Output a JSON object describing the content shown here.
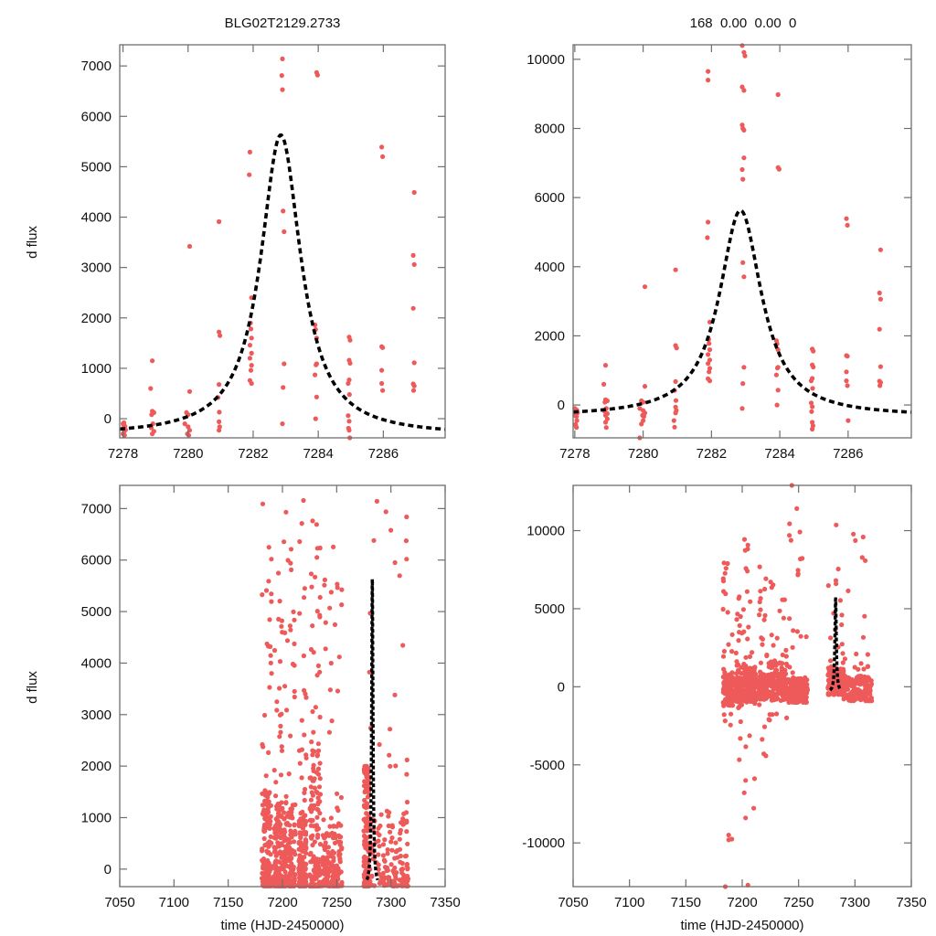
{
  "figure": {
    "point_color": "#ee5a5a",
    "model_color": "#000000",
    "model_style": "dashed"
  },
  "chart_data": [
    {
      "id": "top-left",
      "type": "scatter",
      "title": "BLG02T2129.2733",
      "xlabel": "",
      "ylabel": "d flux",
      "xlim": [
        7277.9,
        7287.9
      ],
      "ylim": [
        -380,
        7420
      ],
      "xticks": [
        7278,
        7280,
        7282,
        7284,
        7286
      ],
      "xtick_labels": [
        "7278",
        "7280",
        "7282",
        "7284",
        "7286"
      ],
      "yticks": [
        0,
        1000,
        2000,
        3000,
        4000,
        5000,
        6000,
        7000
      ],
      "ytick_labels": [
        "0",
        "1000",
        "2000",
        "3000",
        "4000",
        "5000",
        "6000",
        "7000"
      ],
      "grid": false,
      "model": {
        "t0": 7282.85,
        "peak": 5630,
        "baseline": -340,
        "width": 0.75
      },
      "points": [
        [
          7278.0,
          -100
        ],
        [
          7278.02,
          -180
        ],
        [
          7278.04,
          -250
        ],
        [
          7278.06,
          -150
        ],
        [
          7278.0,
          -300
        ],
        [
          7278.05,
          -330
        ],
        [
          7278.08,
          -220
        ],
        [
          7278.03,
          -80
        ],
        [
          7278.9,
          1150
        ],
        [
          7278.85,
          600
        ],
        [
          7278.9,
          150
        ],
        [
          7278.95,
          120
        ],
        [
          7278.88,
          80
        ],
        [
          7278.92,
          -100
        ],
        [
          7278.87,
          -180
        ],
        [
          7278.95,
          -250
        ],
        [
          7278.9,
          -300
        ],
        [
          7280.05,
          3420
        ],
        [
          7280.05,
          540
        ],
        [
          7279.95,
          120
        ],
        [
          7280.0,
          80
        ],
        [
          7279.9,
          -100
        ],
        [
          7280.0,
          -160
        ],
        [
          7280.05,
          -230
        ],
        [
          7279.98,
          -300
        ],
        [
          7280.02,
          -330
        ],
        [
          7280.95,
          3910
        ],
        [
          7280.95,
          1720
        ],
        [
          7280.98,
          1650
        ],
        [
          7280.95,
          680
        ],
        [
          7280.92,
          420
        ],
        [
          7280.96,
          130
        ],
        [
          7280.95,
          -60
        ],
        [
          7280.97,
          -160
        ],
        [
          7280.95,
          -230
        ],
        [
          7281.9,
          5290
        ],
        [
          7281.88,
          4840
        ],
        [
          7281.95,
          2400
        ],
        [
          7281.92,
          1900
        ],
        [
          7281.93,
          1780
        ],
        [
          7281.95,
          1600
        ],
        [
          7281.9,
          1460
        ],
        [
          7281.95,
          1300
        ],
        [
          7281.9,
          1200
        ],
        [
          7281.95,
          1060
        ],
        [
          7281.93,
          960
        ],
        [
          7281.9,
          760
        ],
        [
          7281.95,
          700
        ],
        [
          7282.9,
          7140
        ],
        [
          7282.88,
          6810
        ],
        [
          7282.9,
          6530
        ],
        [
          7282.92,
          4120
        ],
        [
          7282.95,
          3710
        ],
        [
          7282.95,
          1090
        ],
        [
          7282.92,
          620
        ],
        [
          7282.9,
          -100
        ],
        [
          7283.95,
          6870
        ],
        [
          7283.98,
          6820
        ],
        [
          7283.9,
          1860
        ],
        [
          7283.92,
          1770
        ],
        [
          7283.95,
          1600
        ],
        [
          7283.95,
          1090
        ],
        [
          7283.93,
          1070
        ],
        [
          7283.9,
          870
        ],
        [
          7283.95,
          430
        ],
        [
          7283.92,
          0
        ],
        [
          7284.95,
          1620
        ],
        [
          7284.98,
          1560
        ],
        [
          7284.95,
          1160
        ],
        [
          7284.98,
          1100
        ],
        [
          7284.95,
          770
        ],
        [
          7284.92,
          700
        ],
        [
          7284.96,
          480
        ],
        [
          7284.92,
          60
        ],
        [
          7284.95,
          -50
        ],
        [
          7284.93,
          -190
        ],
        [
          7284.95,
          -230
        ],
        [
          7284.97,
          -380
        ],
        [
          7285.95,
          5390
        ],
        [
          7285.98,
          5200
        ],
        [
          7285.95,
          1430
        ],
        [
          7285.98,
          1410
        ],
        [
          7285.95,
          960
        ],
        [
          7285.95,
          700
        ],
        [
          7285.98,
          560
        ],
        [
          7286.95,
          4490
        ],
        [
          7286.92,
          3240
        ],
        [
          7286.95,
          3060
        ],
        [
          7286.92,
          2190
        ],
        [
          7286.95,
          1110
        ],
        [
          7286.92,
          690
        ],
        [
          7286.95,
          650
        ],
        [
          7286.93,
          560
        ]
      ]
    },
    {
      "id": "top-right",
      "type": "scatter",
      "title": "168  0.00  0.00  0",
      "xlabel": "",
      "ylabel": "",
      "xlim": [
        7277.95,
        7287.85
      ],
      "ylim": [
        -950,
        10420
      ],
      "xticks": [
        7278,
        7280,
        7282,
        7284,
        7286
      ],
      "xtick_labels": [
        "7278",
        "7280",
        "7282",
        "7284",
        "7286"
      ],
      "yticks": [
        0,
        2000,
        4000,
        6000,
        8000,
        10000
      ],
      "ytick_labels": [
        "0",
        "2000",
        "4000",
        "6000",
        "8000",
        "10000"
      ],
      "grid": false,
      "model": {
        "t0": 7282.85,
        "peak": 5630,
        "baseline": -340,
        "width": 0.75
      },
      "points": [
        [
          7278.0,
          -100
        ],
        [
          7278.02,
          -180
        ],
        [
          7278.04,
          -250
        ],
        [
          7278.06,
          -150
        ],
        [
          7278.0,
          -300
        ],
        [
          7278.05,
          -330
        ],
        [
          7278.08,
          -220
        ],
        [
          7278.03,
          -600
        ],
        [
          7278.05,
          -650
        ],
        [
          7278.02,
          -560
        ],
        [
          7278.06,
          -450
        ],
        [
          7278.9,
          1150
        ],
        [
          7278.85,
          600
        ],
        [
          7278.9,
          150
        ],
        [
          7278.95,
          120
        ],
        [
          7278.88,
          80
        ],
        [
          7278.92,
          -100
        ],
        [
          7278.87,
          -180
        ],
        [
          7278.95,
          -250
        ],
        [
          7278.9,
          -300
        ],
        [
          7278.95,
          -400
        ],
        [
          7278.9,
          -500
        ],
        [
          7278.92,
          -650
        ],
        [
          7280.05,
          3420
        ],
        [
          7280.05,
          540
        ],
        [
          7279.95,
          120
        ],
        [
          7280.0,
          80
        ],
        [
          7279.9,
          -100
        ],
        [
          7280.0,
          -160
        ],
        [
          7280.05,
          -230
        ],
        [
          7279.98,
          -300
        ],
        [
          7280.02,
          -330
        ],
        [
          7280.0,
          -450
        ],
        [
          7279.95,
          -550
        ],
        [
          7279.9,
          -950
        ],
        [
          7280.95,
          3910
        ],
        [
          7280.95,
          1720
        ],
        [
          7280.98,
          1650
        ],
        [
          7280.95,
          680
        ],
        [
          7280.92,
          420
        ],
        [
          7280.96,
          130
        ],
        [
          7280.95,
          -60
        ],
        [
          7280.97,
          -160
        ],
        [
          7280.95,
          -230
        ],
        [
          7280.9,
          -450
        ],
        [
          7280.92,
          -640
        ],
        [
          7281.9,
          5290
        ],
        [
          7281.88,
          4840
        ],
        [
          7281.95,
          2400
        ],
        [
          7281.92,
          1900
        ],
        [
          7281.93,
          1780
        ],
        [
          7281.95,
          1600
        ],
        [
          7281.9,
          1460
        ],
        [
          7281.95,
          1300
        ],
        [
          7281.9,
          1200
        ],
        [
          7281.95,
          1060
        ],
        [
          7281.93,
          960
        ],
        [
          7281.9,
          760
        ],
        [
          7281.95,
          700
        ],
        [
          7281.9,
          9400
        ],
        [
          7281.9,
          9650
        ],
        [
          7282.9,
          10400
        ],
        [
          7282.95,
          10200
        ],
        [
          7282.98,
          10100
        ],
        [
          7282.9,
          9200
        ],
        [
          7282.95,
          9100
        ],
        [
          7282.9,
          8100
        ],
        [
          7282.92,
          8000
        ],
        [
          7282.95,
          7950
        ],
        [
          7282.95,
          7150
        ],
        [
          7282.9,
          6810
        ],
        [
          7282.92,
          6530
        ],
        [
          7282.92,
          4120
        ],
        [
          7282.95,
          3710
        ],
        [
          7282.95,
          1090
        ],
        [
          7282.92,
          620
        ],
        [
          7282.9,
          -100
        ],
        [
          7283.95,
          8980
        ],
        [
          7283.95,
          6870
        ],
        [
          7283.98,
          6820
        ],
        [
          7283.9,
          1860
        ],
        [
          7283.92,
          1770
        ],
        [
          7283.95,
          1600
        ],
        [
          7283.95,
          1090
        ],
        [
          7283.93,
          1070
        ],
        [
          7283.9,
          870
        ],
        [
          7283.95,
          430
        ],
        [
          7283.92,
          0
        ],
        [
          7284.95,
          1620
        ],
        [
          7284.98,
          1560
        ],
        [
          7284.95,
          1160
        ],
        [
          7284.98,
          1100
        ],
        [
          7284.95,
          770
        ],
        [
          7284.92,
          700
        ],
        [
          7284.96,
          480
        ],
        [
          7284.92,
          60
        ],
        [
          7284.95,
          -50
        ],
        [
          7284.93,
          -190
        ],
        [
          7284.95,
          -500
        ],
        [
          7284.97,
          -600
        ],
        [
          7284.95,
          -700
        ],
        [
          7285.95,
          5390
        ],
        [
          7285.98,
          5200
        ],
        [
          7285.95,
          1430
        ],
        [
          7285.98,
          1410
        ],
        [
          7285.95,
          960
        ],
        [
          7285.95,
          700
        ],
        [
          7285.98,
          560
        ],
        [
          7286.0,
          -450
        ],
        [
          7286.95,
          4490
        ],
        [
          7286.92,
          3240
        ],
        [
          7286.95,
          3060
        ],
        [
          7286.92,
          2190
        ],
        [
          7286.95,
          1110
        ],
        [
          7286.92,
          690
        ],
        [
          7286.95,
          650
        ],
        [
          7286.93,
          560
        ]
      ]
    },
    {
      "id": "bottom-left",
      "type": "scatter",
      "title": "",
      "xlabel": "time (HJD-2450000)",
      "ylabel": "d flux",
      "xlim": [
        7050,
        7350
      ],
      "ylim": [
        -340,
        7450
      ],
      "xticks": [
        7050,
        7100,
        7150,
        7200,
        7250,
        7300,
        7350
      ],
      "xtick_labels": [
        "7050",
        "7100",
        "7150",
        "7200",
        "7250",
        "7300",
        "7350"
      ],
      "yticks": [
        0,
        1000,
        2000,
        3000,
        4000,
        5000,
        6000,
        7000
      ],
      "ytick_labels": [
        "0",
        "1000",
        "2000",
        "3000",
        "4000",
        "5000",
        "6000",
        "7000"
      ],
      "grid": false,
      "model": {
        "t0": 7282.85,
        "peak": 5630,
        "baseline": -340,
        "width": 0.75
      },
      "seasons": [
        {
          "x_range": [
            7181,
            7190
          ],
          "dense_max": 1500,
          "sparse_max": 7200
        },
        {
          "x_range": [
            7192,
            7200
          ],
          "dense_max": 1300,
          "sparse_max": 5900
        },
        {
          "x_range": [
            7201,
            7212
          ],
          "dense_max": 1400,
          "sparse_max": 7250
        },
        {
          "x_range": [
            7215,
            7222
          ],
          "dense_max": 1100,
          "sparse_max": 7400
        },
        {
          "x_range": [
            7225,
            7235
          ],
          "dense_max": 2500,
          "sparse_max": 7000
        },
        {
          "x_range": [
            7237,
            7255
          ],
          "dense_max": 1000,
          "sparse_max": 6300
        },
        {
          "x_range": [
            7275,
            7280
          ],
          "dense_max": 1800,
          "sparse_max": 2000
        },
        {
          "x_range": [
            7280,
            7316
          ],
          "dense_max": 1200,
          "sparse_max": 7200
        }
      ]
    },
    {
      "id": "bottom-right",
      "type": "scatter",
      "title": "",
      "xlabel": "time (HJD-2450000)",
      "ylabel": "",
      "xlim": [
        7050,
        7350
      ],
      "ylim": [
        -12800,
        12900
      ],
      "xticks": [
        7050,
        7100,
        7150,
        7200,
        7250,
        7300,
        7350
      ],
      "xtick_labels": [
        "7050",
        "7100",
        "7150",
        "7200",
        "7250",
        "7300",
        "7350"
      ],
      "yticks": [
        -10000,
        -5000,
        0,
        5000,
        10000
      ],
      "ytick_labels": [
        "-10000",
        "-5000",
        "0",
        "5000",
        "10000"
      ],
      "grid": false,
      "model": {
        "t0": 7282.85,
        "peak": 5630,
        "baseline": -340,
        "width": 0.75
      },
      "seasons": [
        {
          "x_range": [
            7183,
            7192
          ],
          "core": [
            -1200,
            800
          ],
          "low": -9800,
          "high": 8600
        },
        {
          "x_range": [
            7194,
            7200
          ],
          "core": [
            -1000,
            600
          ],
          "low": -4800,
          "high": 6000
        },
        {
          "x_range": [
            7201,
            7212
          ],
          "core": [
            -1000,
            1200
          ],
          "low": -8300,
          "high": 9800
        },
        {
          "x_range": [
            7215,
            7222
          ],
          "core": [
            -800,
            800
          ],
          "low": -5000,
          "high": 8000
        },
        {
          "x_range": [
            7223,
            7240
          ],
          "core": [
            -900,
            1500
          ],
          "low": -3500,
          "high": 7500
        },
        {
          "x_range": [
            7241,
            7258
          ],
          "core": [
            -1000,
            600
          ],
          "low": -1000,
          "high": 12800
        },
        {
          "x_range": [
            7276,
            7290
          ],
          "core": [
            -500,
            1200
          ],
          "low": -500,
          "high": 10400
        },
        {
          "x_range": [
            7290,
            7315
          ],
          "core": [
            -900,
            700
          ],
          "low": -900,
          "high": 9800
        }
      ],
      "outliers": [
        [
          7185,
          -12800
        ],
        [
          7205,
          -12700
        ],
        [
          7188,
          -9500
        ],
        [
          7188,
          -9800
        ],
        [
          7203,
          -8400
        ],
        [
          7203,
          -6000
        ],
        [
          7244,
          12900
        ]
      ]
    }
  ]
}
